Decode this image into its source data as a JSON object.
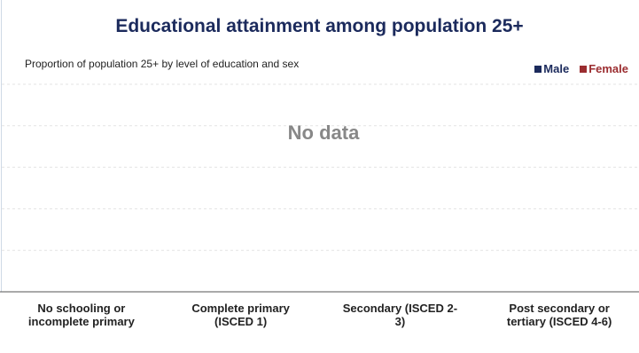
{
  "chart_data": {
    "type": "bar",
    "title": "Educational attainment among population 25+",
    "subtitle": "Proportion of population 25+ by level of education and sex",
    "annotation": "No data",
    "categories": [
      "No schooling or incomplete primary",
      "Complete primary (ISCED 1)",
      "Secondary (ISCED 2-3)",
      "Post secondary or tertiary (ISCED 4-6)"
    ],
    "series": [
      {
        "name": "Male",
        "color": "#1b2a5c",
        "values": [
          null,
          null,
          null,
          null
        ]
      },
      {
        "name": "Female",
        "color": "#9b2d30",
        "values": [
          null,
          null,
          null,
          null
        ]
      }
    ],
    "grid": true,
    "legend": "top-right"
  }
}
